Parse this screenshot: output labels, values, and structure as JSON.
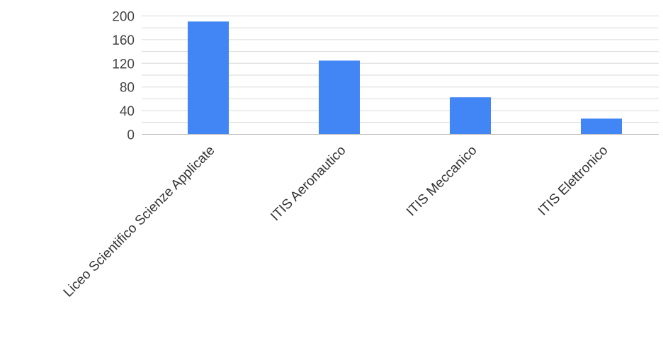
{
  "chart_data": {
    "type": "bar",
    "title": "",
    "xlabel": "",
    "ylabel": "",
    "categories": [
      "Liceo Scientifico Scienze Applicate",
      "ITIS Aeronautico",
      "ITIS Meccanico",
      "ITIS Elettronico"
    ],
    "values": [
      190,
      124,
      62,
      26
    ],
    "ylim": [
      0,
      200
    ],
    "yticks": [
      0,
      40,
      80,
      120,
      160,
      200
    ],
    "grid": true,
    "minor_grid": true,
    "legend": "none",
    "bar_color": "#4285f4"
  }
}
